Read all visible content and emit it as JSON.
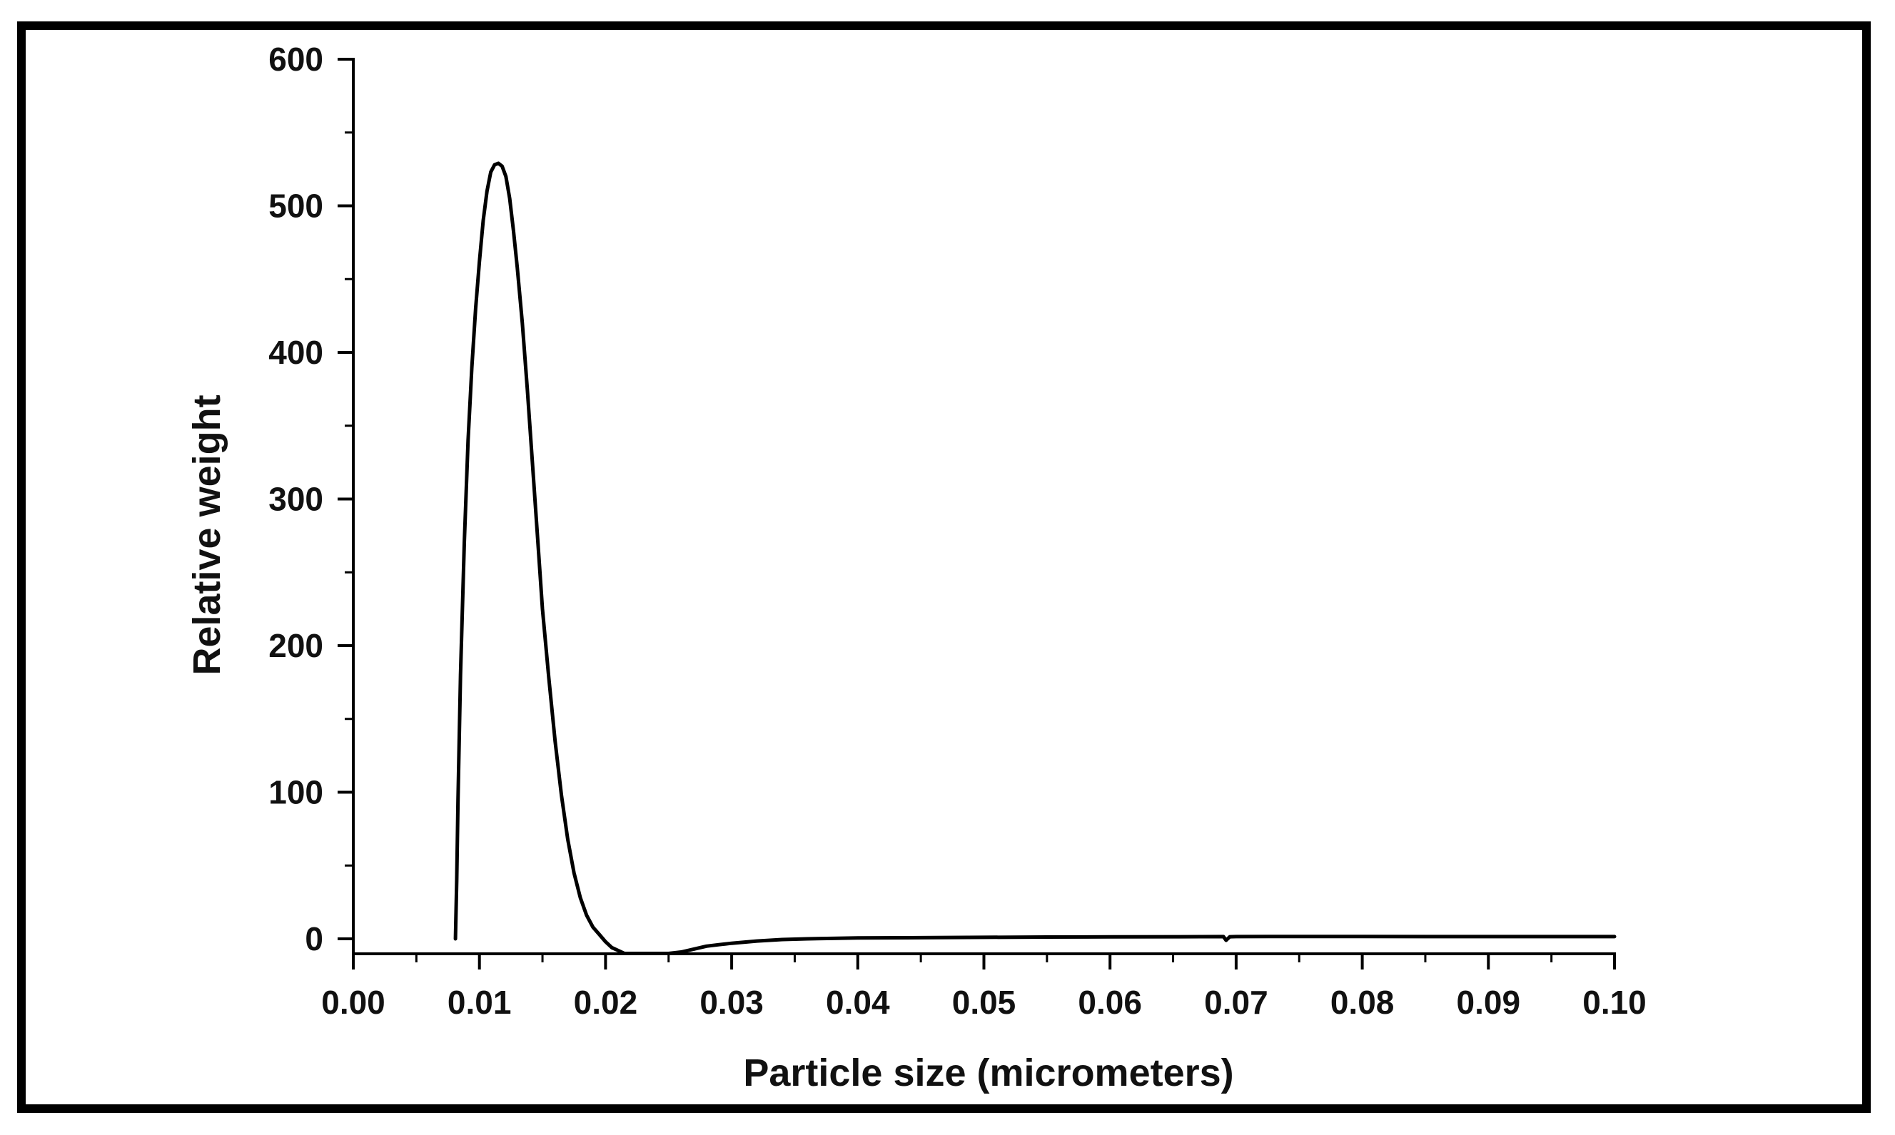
{
  "chart_data": {
    "type": "line",
    "xlabel": "Particle size (micrometers)",
    "ylabel": "Relative weight",
    "xlim": [
      0.0,
      0.1
    ],
    "ylim": [
      -10,
      600
    ],
    "x_ticks": [
      "0.00",
      "0.01",
      "0.02",
      "0.03",
      "0.04",
      "0.05",
      "0.06",
      "0.07",
      "0.08",
      "0.09",
      "0.10"
    ],
    "y_ticks": [
      "0",
      "100",
      "200",
      "300",
      "400",
      "500",
      "600"
    ],
    "grid": false,
    "legend": "none",
    "line_color": "#000000",
    "series": [
      {
        "x": [
          0.0081,
          0.0082,
          0.0083,
          0.0085,
          0.0088,
          0.0091,
          0.0094,
          0.0097,
          0.01,
          0.0103,
          0.0106,
          0.0109,
          0.0112,
          0.0115,
          0.0118,
          0.0121,
          0.0124,
          0.0127,
          0.013,
          0.0134,
          0.0138,
          0.0142,
          0.0146,
          0.015,
          0.0155,
          0.016,
          0.0165,
          0.017,
          0.0175,
          0.018,
          0.0185,
          0.019,
          0.0195,
          0.02,
          0.0205,
          0.021,
          0.0215,
          0.022,
          0.0225,
          0.023,
          0.024,
          0.025,
          0.026,
          0.027,
          0.028,
          0.029,
          0.03,
          0.032,
          0.034,
          0.036,
          0.038,
          0.04,
          0.045,
          0.05,
          0.055,
          0.06,
          0.065,
          0.069,
          0.0692,
          0.0695,
          0.07,
          0.075,
          0.08,
          0.085,
          0.09,
          0.095,
          0.1
        ],
        "y": [
          0,
          40,
          95,
          180,
          270,
          340,
          390,
          430,
          462,
          490,
          510,
          523,
          528,
          529,
          527,
          520,
          505,
          483,
          458,
          420,
          375,
          325,
          275,
          225,
          178,
          135,
          98,
          68,
          45,
          28,
          16,
          8,
          3,
          -2,
          -6,
          -8,
          -10,
          -10,
          -10,
          -10,
          -10,
          -10,
          -9,
          -7,
          -5,
          -4,
          -3,
          -1.5,
          -0.5,
          0,
          0.3,
          0.6,
          0.8,
          1,
          1.2,
          1.3,
          1.4,
          1.5,
          -1,
          1.4,
          1.5,
          1.6,
          1.6,
          1.5,
          1.5,
          1.5,
          1.5
        ]
      }
    ]
  }
}
